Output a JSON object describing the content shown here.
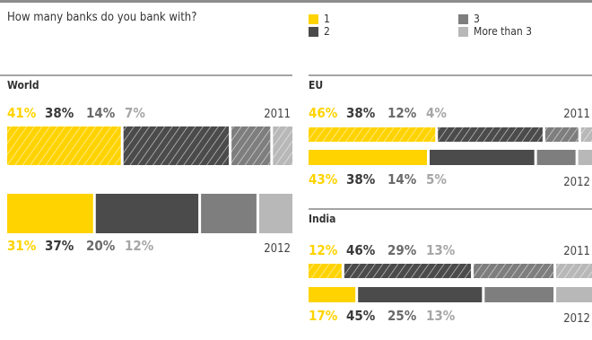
{
  "question": "How many banks do you bank with?",
  "legend": [
    {
      "label": "1",
      "color": "#ffd300"
    },
    {
      "label": "2",
      "color": "#4b4b4b"
    },
    {
      "label": "3",
      "color": "#7e7e7e"
    },
    {
      "label": "More than 3",
      "color": "#b8b8b8"
    }
  ],
  "chart_data": [
    {
      "type": "bar",
      "region": "World",
      "categories": [
        "1",
        "2",
        "3",
        "More than 3"
      ],
      "series": [
        {
          "name": "2011",
          "values": [
            41,
            38,
            14,
            7
          ],
          "labels": [
            "41%",
            "38%",
            "14%",
            "7%"
          ],
          "pattern": "hatched"
        },
        {
          "name": "2012",
          "values": [
            31,
            37,
            20,
            12
          ],
          "labels": [
            "31%",
            "37%",
            "20%",
            "12%"
          ],
          "pattern": "solid"
        }
      ]
    },
    {
      "type": "bar",
      "region": "EU",
      "categories": [
        "1",
        "2",
        "3",
        "More than 3"
      ],
      "series": [
        {
          "name": "2011",
          "values": [
            46,
            38,
            12,
            4
          ],
          "labels": [
            "46%",
            "38%",
            "12%",
            "4%"
          ],
          "pattern": "hatched"
        },
        {
          "name": "2012",
          "values": [
            43,
            38,
            14,
            5
          ],
          "labels": [
            "43%",
            "38%",
            "14%",
            "5%"
          ],
          "pattern": "solid"
        }
      ]
    },
    {
      "type": "bar",
      "region": "India",
      "categories": [
        "1",
        "2",
        "3",
        "More than 3"
      ],
      "series": [
        {
          "name": "2011",
          "values": [
            12,
            46,
            29,
            13
          ],
          "labels": [
            "12%",
            "46%",
            "29%",
            "13%"
          ],
          "pattern": "hatched"
        },
        {
          "name": "2012",
          "values": [
            17,
            45,
            25,
            13
          ],
          "labels": [
            "17%",
            "45%",
            "25%",
            "13%"
          ],
          "pattern": "solid"
        }
      ]
    }
  ]
}
